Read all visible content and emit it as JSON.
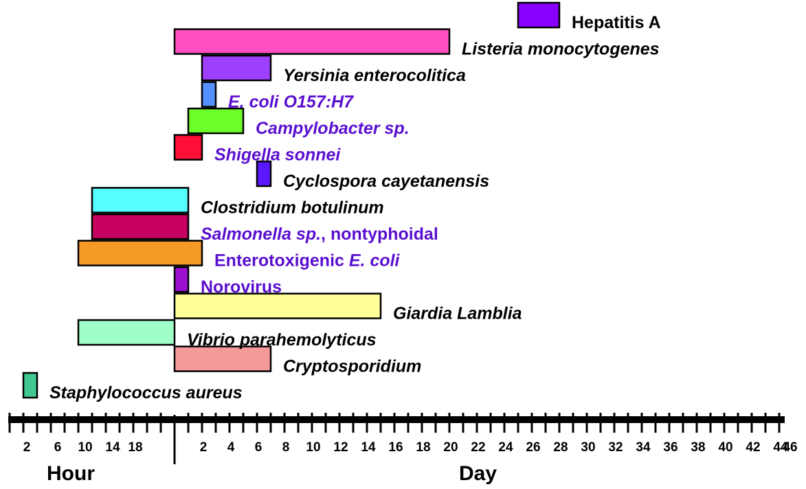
{
  "chart_data": {
    "type": "bar",
    "orientation": "horizontal",
    "title": "",
    "x_axis": {
      "hour_section": {
        "title": "Hour",
        "tick_labels": [
          "2",
          "6",
          "10",
          "14",
          "18"
        ],
        "unit": "hours"
      },
      "day_section": {
        "title": "Day",
        "tick_labels": [
          "2",
          "4",
          "6",
          "8",
          "10",
          "12",
          "14",
          "16",
          "18",
          "20",
          "22",
          "24",
          "26",
          "28",
          "30",
          "32",
          "34",
          "36",
          "38",
          "40",
          "42",
          "44",
          "46"
        ],
        "unit": "days"
      }
    },
    "series": [
      {
        "name": "Hepatitis A",
        "parts": [
          {
            "text": "Hepatitis A",
            "italic": false
          }
        ],
        "start": {
          "unit": "day",
          "value": 25
        },
        "end": {
          "unit": "day",
          "value": 28
        },
        "fill": "#8800ff",
        "label_color": "#000000"
      },
      {
        "name": "Listeria monocytogenes",
        "parts": [
          {
            "text": "Listeria monocytogenes",
            "italic": true
          }
        ],
        "start": {
          "unit": "day",
          "value": 0
        },
        "end": {
          "unit": "day",
          "value": 20
        },
        "fill": "#ff4fc0",
        "label_color": "#000000"
      },
      {
        "name": "Yersinia enterocolitica",
        "parts": [
          {
            "text": "Yersinia enterocolitica",
            "italic": true
          }
        ],
        "start": {
          "unit": "day",
          "value": 2
        },
        "end": {
          "unit": "day",
          "value": 7
        },
        "fill": "#a040ff",
        "label_color": "#000000"
      },
      {
        "name": "E. coli O157:H7",
        "parts": [
          {
            "text": "E. coli O157:H7",
            "italic": true
          }
        ],
        "start": {
          "unit": "day",
          "value": 2
        },
        "end": {
          "unit": "day",
          "value": 3
        },
        "fill": "#5590ff",
        "label_color": "#5a0fd0"
      },
      {
        "name": "Campylobacter sp.",
        "parts": [
          {
            "text": "Campylobacter sp.",
            "italic": true
          }
        ],
        "start": {
          "unit": "day",
          "value": 1
        },
        "end": {
          "unit": "day",
          "value": 5
        },
        "fill": "#6cff2a",
        "label_color": "#5a0fd0"
      },
      {
        "name": "Shigella sonnei",
        "parts": [
          {
            "text": "Shigella sonnei",
            "italic": true
          }
        ],
        "start": {
          "unit": "day",
          "value": 0
        },
        "end": {
          "unit": "day",
          "value": 2
        },
        "fill": "#ff0f35",
        "label_color": "#5a0fd0"
      },
      {
        "name": "Cyclospora cayetanensis",
        "parts": [
          {
            "text": "Cyclospora cayetanensis",
            "italic": true
          }
        ],
        "start": {
          "unit": "day",
          "value": 6
        },
        "end": {
          "unit": "day",
          "value": 7
        },
        "fill": "#5a18ff",
        "label_color": "#000000"
      },
      {
        "name": "Clostridium botulinum",
        "parts": [
          {
            "text": "Clostridium botulinum",
            "italic": true
          }
        ],
        "start": {
          "unit": "hour",
          "value": 12
        },
        "end": {
          "unit": "day",
          "value": 1
        },
        "fill": "#55ffff",
        "label_color": "#000000"
      },
      {
        "name": "Salmonella sp., nontyphoidal",
        "parts": [
          {
            "text": "Salmonella sp.",
            "italic": true
          },
          {
            "text": ", nontyphoidal",
            "italic": false
          }
        ],
        "start": {
          "unit": "hour",
          "value": 12
        },
        "end": {
          "unit": "day",
          "value": 1
        },
        "fill": "#c6005e",
        "label_color": "#5a0fd0"
      },
      {
        "name": "Enterotoxigenic E. coli",
        "parts": [
          {
            "text": "Enterotoxigenic ",
            "italic": false
          },
          {
            "text": "E. coli",
            "italic": true
          }
        ],
        "start": {
          "unit": "hour",
          "value": 10
        },
        "end": {
          "unit": "day",
          "value": 2
        },
        "fill": "#f59a25",
        "label_color": "#5a0fd0"
      },
      {
        "name": "Norovirus",
        "parts": [
          {
            "text": "Norovirus",
            "italic": false
          }
        ],
        "start": {
          "unit": "day",
          "value": 0
        },
        "end": {
          "unit": "day",
          "value": 1
        },
        "fill": "#9a10d0",
        "label_color": "#5a0fd0"
      },
      {
        "name": "Giardia Lamblia",
        "parts": [
          {
            "text": "Giardia Lamblia",
            "italic": true
          }
        ],
        "start": {
          "unit": "day",
          "value": 0
        },
        "end": {
          "unit": "day",
          "value": 15
        },
        "fill": "#ffff9a",
        "label_color": "#000000"
      },
      {
        "name": "Vibrio parahemolyticus",
        "parts": [
          {
            "text": "Vibrio parahemolyticus",
            "italic": true
          }
        ],
        "start": {
          "unit": "hour",
          "value": 10
        },
        "end": {
          "unit": "day",
          "value": 0
        },
        "fill": "#a0ffc8",
        "label_color": "#000000"
      },
      {
        "name": "Cryptosporidium",
        "parts": [
          {
            "text": "Cryptosporidium",
            "italic": true
          }
        ],
        "start": {
          "unit": "day",
          "value": 0
        },
        "end": {
          "unit": "day",
          "value": 7
        },
        "fill": "#f59a9a",
        "label_color": "#000000"
      },
      {
        "name": "Staphylococcus aureus",
        "parts": [
          {
            "text": "Staphylococcus aureus",
            "italic": true
          }
        ],
        "start": {
          "unit": "hour",
          "value": 2
        },
        "end": {
          "unit": "hour",
          "value": 4
        },
        "fill": "#40c890",
        "label_color": "#000000"
      }
    ],
    "grid": false,
    "legend": "none (labels placed next to bars)"
  }
}
